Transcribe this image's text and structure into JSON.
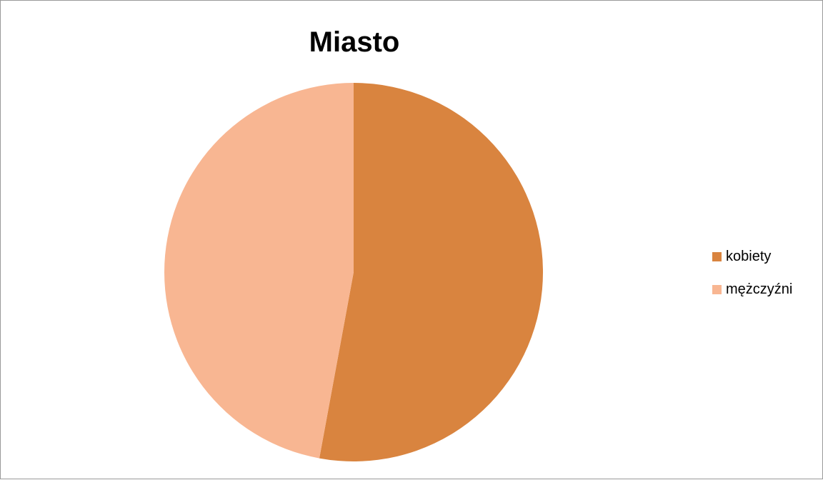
{
  "chart_data": {
    "type": "pie",
    "title": "Miasto",
    "categories": [
      "kobiety",
      "mężczyźni"
    ],
    "values": [
      52.9,
      47.1
    ],
    "colors": [
      "#D9843F",
      "#F8B692"
    ],
    "start_angle_deg": 0,
    "direction": "clockwise",
    "legend_position": "right"
  }
}
